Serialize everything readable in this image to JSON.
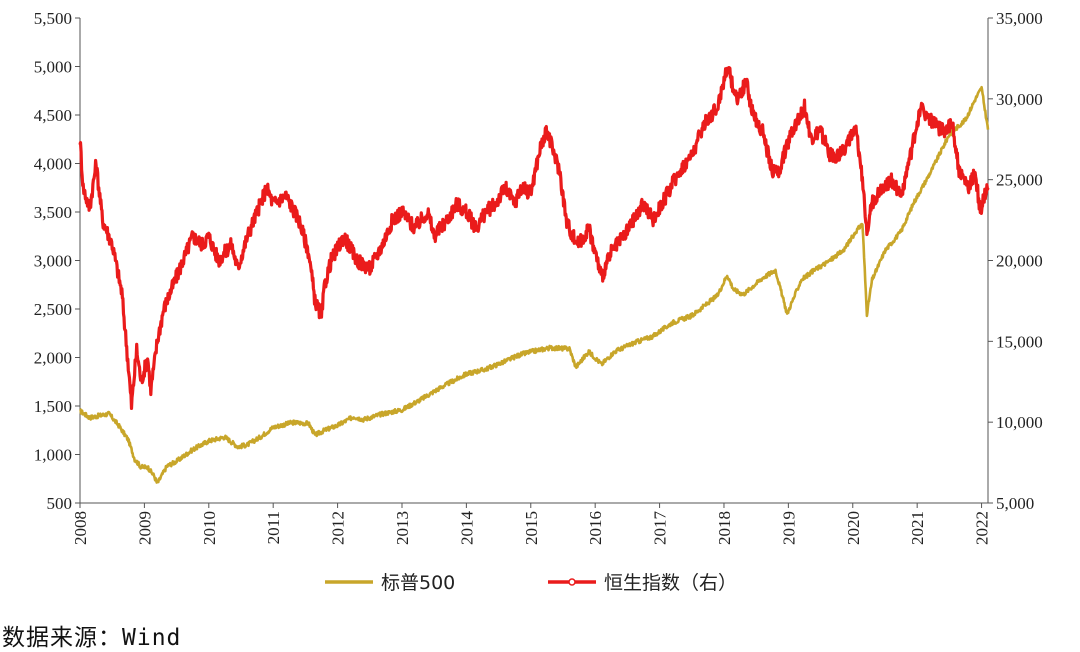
{
  "chart_data": {
    "type": "line",
    "title": "",
    "xlabel": "",
    "ylabel_left": "",
    "ylabel_right": "",
    "x_ticks": [
      "2008",
      "2009",
      "2010",
      "2011",
      "2012",
      "2013",
      "2014",
      "2015",
      "2016",
      "2017",
      "2018",
      "2019",
      "2020",
      "2021",
      "2022"
    ],
    "x_range": [
      2008.0,
      2022.1
    ],
    "y_left": {
      "range": [
        500,
        5500
      ],
      "ticks": [
        "500",
        "1,000",
        "1,500",
        "2,000",
        "2,500",
        "3,000",
        "3,500",
        "4,000",
        "4,500",
        "5,000",
        "5,500"
      ]
    },
    "y_right": {
      "range": [
        5000,
        35000
      ],
      "ticks": [
        "5,000",
        "10,000",
        "15,000",
        "20,000",
        "25,000",
        "30,000",
        "35,000"
      ]
    },
    "grid": false,
    "legend_position": "bottom",
    "series": [
      {
        "name": "标普500",
        "axis": "left",
        "color": "#c8a62a",
        "x": [
          2008.0,
          2008.15,
          2008.3,
          2008.45,
          2008.6,
          2008.75,
          2008.85,
          2008.95,
          2009.05,
          2009.15,
          2009.2,
          2009.35,
          2009.5,
          2009.75,
          2010.0,
          2010.25,
          2010.45,
          2010.6,
          2010.8,
          2011.0,
          2011.3,
          2011.55,
          2011.65,
          2011.8,
          2012.0,
          2012.25,
          2012.4,
          2012.7,
          2013.0,
          2013.3,
          2013.6,
          2014.0,
          2014.3,
          2014.6,
          2014.8,
          2015.0,
          2015.3,
          2015.6,
          2015.7,
          2015.9,
          2016.1,
          2016.3,
          2016.6,
          2016.9,
          2017.2,
          2017.5,
          2017.9,
          2018.05,
          2018.15,
          2018.3,
          2018.6,
          2018.8,
          2018.98,
          2019.2,
          2019.4,
          2019.6,
          2019.85,
          2020.05,
          2020.15,
          2020.22,
          2020.3,
          2020.5,
          2020.75,
          2020.95,
          2021.2,
          2021.5,
          2021.75,
          2021.9,
          2022.0,
          2022.1
        ],
        "values": [
          1450,
          1380,
          1400,
          1420,
          1300,
          1150,
          950,
          870,
          870,
          780,
          700,
          880,
          930,
          1050,
          1140,
          1180,
          1080,
          1100,
          1180,
          1280,
          1330,
          1320,
          1200,
          1250,
          1300,
          1390,
          1360,
          1420,
          1460,
          1570,
          1690,
          1830,
          1880,
          1960,
          2020,
          2060,
          2100,
          2090,
          1900,
          2060,
          1930,
          2060,
          2150,
          2220,
          2360,
          2430,
          2640,
          2850,
          2700,
          2650,
          2820,
          2900,
          2450,
          2800,
          2900,
          2980,
          3100,
          3300,
          3380,
          2450,
          2800,
          3100,
          3300,
          3600,
          3900,
          4300,
          4450,
          4660,
          4780,
          4350
        ]
      },
      {
        "name": "恒生指数（右）",
        "axis": "right",
        "color": "#ea1b1b",
        "x": [
          2008.0,
          2008.05,
          2008.15,
          2008.25,
          2008.35,
          2008.5,
          2008.65,
          2008.75,
          2008.8,
          2008.88,
          2008.95,
          2009.05,
          2009.1,
          2009.2,
          2009.3,
          2009.45,
          2009.6,
          2009.75,
          2009.9,
          2010.0,
          2010.15,
          2010.35,
          2010.45,
          2010.6,
          2010.8,
          2010.9,
          2011.0,
          2011.2,
          2011.4,
          2011.55,
          2011.65,
          2011.75,
          2011.8,
          2011.9,
          2012.1,
          2012.3,
          2012.5,
          2012.7,
          2012.85,
          2013.0,
          2013.2,
          2013.4,
          2013.5,
          2013.7,
          2013.85,
          2014.0,
          2014.15,
          2014.3,
          2014.45,
          2014.6,
          2014.75,
          2014.85,
          2015.0,
          2015.15,
          2015.25,
          2015.33,
          2015.45,
          2015.55,
          2015.65,
          2015.75,
          2015.9,
          2016.0,
          2016.1,
          2016.25,
          2016.45,
          2016.6,
          2016.75,
          2016.9,
          2017.1,
          2017.3,
          2017.5,
          2017.7,
          2017.9,
          2018.05,
          2018.2,
          2018.35,
          2018.45,
          2018.6,
          2018.75,
          2018.85,
          2019.05,
          2019.25,
          2019.35,
          2019.5,
          2019.65,
          2019.8,
          2019.95,
          2020.05,
          2020.15,
          2020.22,
          2020.3,
          2020.45,
          2020.6,
          2020.75,
          2020.9,
          2021.05,
          2021.15,
          2021.25,
          2021.4,
          2021.55,
          2021.65,
          2021.8,
          2021.9,
          2021.98,
          2022.05,
          2022.1
        ],
        "values": [
          27500,
          24500,
          23200,
          26000,
          22500,
          21000,
          18000,
          13500,
          11000,
          14500,
          12500,
          14000,
          12000,
          15000,
          17000,
          18500,
          20000,
          21500,
          21000,
          21500,
          20000,
          21000,
          19500,
          21500,
          23500,
          24500,
          23500,
          24000,
          22500,
          20500,
          17500,
          16500,
          18500,
          20000,
          21500,
          20000,
          19500,
          21000,
          22500,
          23000,
          22000,
          23000,
          21500,
          22500,
          23500,
          23000,
          22000,
          23000,
          23500,
          24500,
          23500,
          24500,
          24200,
          27000,
          28000,
          27000,
          25500,
          22500,
          21500,
          21000,
          22000,
          20500,
          19000,
          20500,
          21500,
          22500,
          23500,
          22500,
          24000,
          25500,
          26500,
          28500,
          29500,
          32000,
          30000,
          31000,
          29000,
          28000,
          25500,
          25500,
          28000,
          29500,
          27500,
          28000,
          26500,
          26500,
          27500,
          28000,
          25000,
          22000,
          23500,
          24500,
          25000,
          24000,
          26500,
          29500,
          29000,
          28500,
          28000,
          28500,
          25500,
          24500,
          25500,
          23000,
          24000,
          24500
        ]
      }
    ]
  },
  "legend": [
    {
      "label": "标普500",
      "color": "#c8a62a"
    },
    {
      "label": "恒生指数（右）",
      "color": "#ea1b1b"
    }
  ],
  "source_text": "数据来源：Wind"
}
